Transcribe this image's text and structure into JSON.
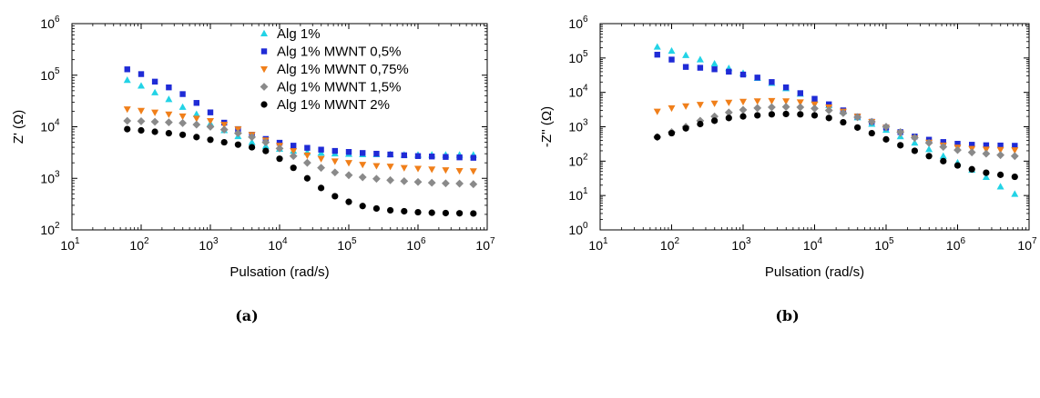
{
  "chart_data": [
    {
      "type": "scatter",
      "panel_label": "(a)",
      "xlabel": "Pulsation (rad/s)",
      "ylabel": "Z' (Ω)",
      "xscale": "log",
      "yscale": "log",
      "xlim": [
        10,
        10000000
      ],
      "ylim": [
        100,
        1000000
      ],
      "x_ticks": [
        {
          "base": "10",
          "exp": "1"
        },
        {
          "base": "10",
          "exp": "2"
        },
        {
          "base": "10",
          "exp": "3"
        },
        {
          "base": "10",
          "exp": "4"
        },
        {
          "base": "10",
          "exp": "5"
        },
        {
          "base": "10",
          "exp": "6"
        },
        {
          "base": "10",
          "exp": "7"
        }
      ],
      "y_ticks": [
        {
          "base": "10",
          "exp": "2"
        },
        {
          "base": "10",
          "exp": "3"
        },
        {
          "base": "10",
          "exp": "4"
        },
        {
          "base": "10",
          "exp": "5"
        },
        {
          "base": "10",
          "exp": "6"
        }
      ],
      "grid": false,
      "legend_position": "top-center",
      "x": [
        63,
        100,
        158,
        251,
        398,
        631,
        1000,
        1585,
        2512,
        3981,
        6310,
        10000,
        15850,
        25120,
        39810,
        63100,
        100000,
        158500,
        251200,
        398100,
        631000,
        1000000,
        1585000,
        2512000,
        3981000,
        6310000
      ],
      "series": [
        {
          "name": "Alg 1%",
          "marker": "triangle-up",
          "color": "#22d3e6",
          "values": [
            80000,
            62000,
            46000,
            34000,
            24000,
            17500,
            11500,
            8500,
            6500,
            5000,
            4200,
            3700,
            3400,
            3200,
            3100,
            3000,
            2950,
            2900,
            2900,
            2900,
            2850,
            2850,
            2850,
            2850,
            2850,
            2850
          ]
        },
        {
          "name": "Alg 1% MWNT 0,5%",
          "marker": "square",
          "color": "#1f2bd6",
          "values": [
            130000,
            105000,
            75000,
            58000,
            43000,
            29000,
            19000,
            12000,
            9000,
            7000,
            5800,
            4900,
            4300,
            3900,
            3600,
            3400,
            3250,
            3100,
            3000,
            2900,
            2800,
            2700,
            2650,
            2600,
            2550,
            2500
          ]
        },
        {
          "name": "Alg 1% MWNT 0,75%",
          "marker": "triangle-down",
          "color": "#f07f1a",
          "values": [
            22000,
            20500,
            19000,
            17500,
            16000,
            14500,
            13000,
            11000,
            9000,
            7000,
            5500,
            4300,
            3400,
            2800,
            2400,
            2150,
            2000,
            1850,
            1750,
            1700,
            1600,
            1550,
            1500,
            1450,
            1400,
            1380
          ]
        },
        {
          "name": "Alg 1% MWNT 1,5%",
          "marker": "diamond",
          "color": "#8a8a8a",
          "values": [
            13000,
            12800,
            12500,
            12200,
            11800,
            11000,
            10000,
            8800,
            7500,
            6300,
            5000,
            3800,
            2700,
            2000,
            1600,
            1300,
            1150,
            1050,
            980,
            920,
            880,
            850,
            820,
            800,
            790,
            770
          ]
        },
        {
          "name": "Alg 1% MWNT 2%",
          "marker": "circle",
          "color": "#000000",
          "values": [
            9000,
            8500,
            8000,
            7500,
            7000,
            6300,
            5600,
            5000,
            4500,
            4000,
            3400,
            2400,
            1600,
            1000,
            650,
            450,
            350,
            290,
            260,
            240,
            230,
            220,
            215,
            212,
            210,
            208
          ]
        }
      ]
    },
    {
      "type": "scatter",
      "panel_label": "(b)",
      "xlabel": "Pulsation (rad/s)",
      "ylabel": "-Z'' (Ω)",
      "xscale": "log",
      "yscale": "log",
      "xlim": [
        10,
        10000000
      ],
      "ylim": [
        1,
        1000000
      ],
      "x_ticks": [
        {
          "base": "10",
          "exp": "1"
        },
        {
          "base": "10",
          "exp": "2"
        },
        {
          "base": "10",
          "exp": "3"
        },
        {
          "base": "10",
          "exp": "4"
        },
        {
          "base": "10",
          "exp": "5"
        },
        {
          "base": "10",
          "exp": "6"
        },
        {
          "base": "10",
          "exp": "7"
        }
      ],
      "y_ticks": [
        {
          "base": "10",
          "exp": "0"
        },
        {
          "base": "10",
          "exp": "1"
        },
        {
          "base": "10",
          "exp": "2"
        },
        {
          "base": "10",
          "exp": "3"
        },
        {
          "base": "10",
          "exp": "4"
        },
        {
          "base": "10",
          "exp": "5"
        },
        {
          "base": "10",
          "exp": "6"
        }
      ],
      "grid": false,
      "x": [
        63,
        100,
        158,
        251,
        398,
        631,
        1000,
        1585,
        2512,
        3981,
        6310,
        10000,
        15850,
        25120,
        39810,
        63100,
        100000,
        158500,
        251200,
        398100,
        631000,
        1000000,
        1585000,
        2512000,
        3981000,
        6310000
      ],
      "series": [
        {
          "name": "Alg 1%",
          "marker": "triangle-up",
          "color": "#22d3e6",
          "values": [
            210000,
            160000,
            120000,
            90000,
            68000,
            50000,
            36000,
            26000,
            18500,
            13000,
            9000,
            6000,
            4200,
            2800,
            1850,
            1200,
            800,
            520,
            340,
            220,
            140,
            90,
            55,
            34,
            18,
            11
          ]
        },
        {
          "name": "Alg 1% MWNT 0,5%",
          "marker": "square",
          "color": "#1f2bd6",
          "values": [
            125000,
            90000,
            55000,
            52000,
            47000,
            40000,
            33000,
            27000,
            20000,
            14000,
            9500,
            6500,
            4500,
            3000,
            2000,
            1400,
            950,
            700,
            520,
            420,
            360,
            320,
            300,
            290,
            285,
            280
          ]
        },
        {
          "name": "Alg 1% MWNT 0,75%",
          "marker": "triangle-down",
          "color": "#f07f1a",
          "values": [
            2800,
            3500,
            4000,
            4400,
            4800,
            5100,
            5400,
            5600,
            5700,
            5600,
            5200,
            4500,
            3700,
            2800,
            2000,
            1400,
            950,
            650,
            460,
            350,
            290,
            250,
            230,
            220,
            215,
            210
          ]
        },
        {
          "name": "Alg 1% MWNT 1,5%",
          "marker": "diamond",
          "color": "#8a8a8a",
          "values": [
            500,
            700,
            1000,
            1500,
            2000,
            2600,
            3100,
            3500,
            3700,
            3800,
            3700,
            3400,
            3000,
            2500,
            1900,
            1400,
            1000,
            700,
            480,
            340,
            260,
            210,
            180,
            165,
            150,
            140
          ]
        },
        {
          "name": "Alg 1% MWNT 2%",
          "marker": "circle",
          "color": "#000000",
          "values": [
            500,
            650,
            900,
            1200,
            1500,
            1800,
            2000,
            2150,
            2300,
            2350,
            2300,
            2150,
            1800,
            1350,
            950,
            650,
            430,
            290,
            200,
            140,
            100,
            75,
            58,
            46,
            40,
            35
          ]
        }
      ]
    }
  ]
}
